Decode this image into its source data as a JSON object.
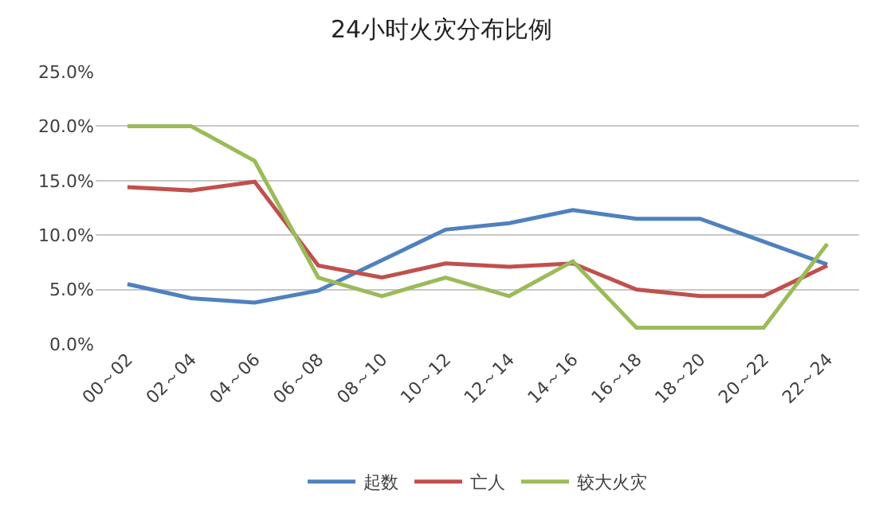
{
  "chart_data": {
    "type": "line",
    "title": "24小时火灾分布比例",
    "categories": [
      "00～02",
      "02～04",
      "04～06",
      "06～08",
      "08～10",
      "10～12",
      "12～14",
      "14～16",
      "16～18",
      "18～20",
      "20～22",
      "22～24"
    ],
    "series": [
      {
        "name": "起数",
        "color": "#4f81bd",
        "values": [
          5.5,
          4.2,
          3.8,
          4.9,
          7.7,
          10.5,
          11.1,
          12.3,
          11.5,
          11.5,
          9.4,
          7.3
        ]
      },
      {
        "name": "亡人",
        "color": "#c0504d",
        "values": [
          14.4,
          14.1,
          14.9,
          7.2,
          6.1,
          7.4,
          7.1,
          7.4,
          5.0,
          4.4,
          4.4,
          7.2
        ]
      },
      {
        "name": "较大火灾",
        "color": "#9bbb59",
        "values": [
          20.0,
          20.0,
          16.8,
          6.1,
          4.4,
          6.1,
          4.4,
          7.6,
          1.5,
          1.5,
          1.5,
          9.2
        ]
      }
    ],
    "ylim": [
      0,
      25
    ],
    "yticks": [
      {
        "value": 0,
        "label": "0.0%"
      },
      {
        "value": 5,
        "label": "5.0%"
      },
      {
        "value": 10,
        "label": "10.0%"
      },
      {
        "value": 15,
        "label": "15.0%"
      },
      {
        "value": 20,
        "label": "20.0%"
      },
      {
        "value": 25,
        "label": "25.0%"
      }
    ],
    "grid": "y",
    "legend": "bottom",
    "marker": "none",
    "line_style": "solid"
  }
}
